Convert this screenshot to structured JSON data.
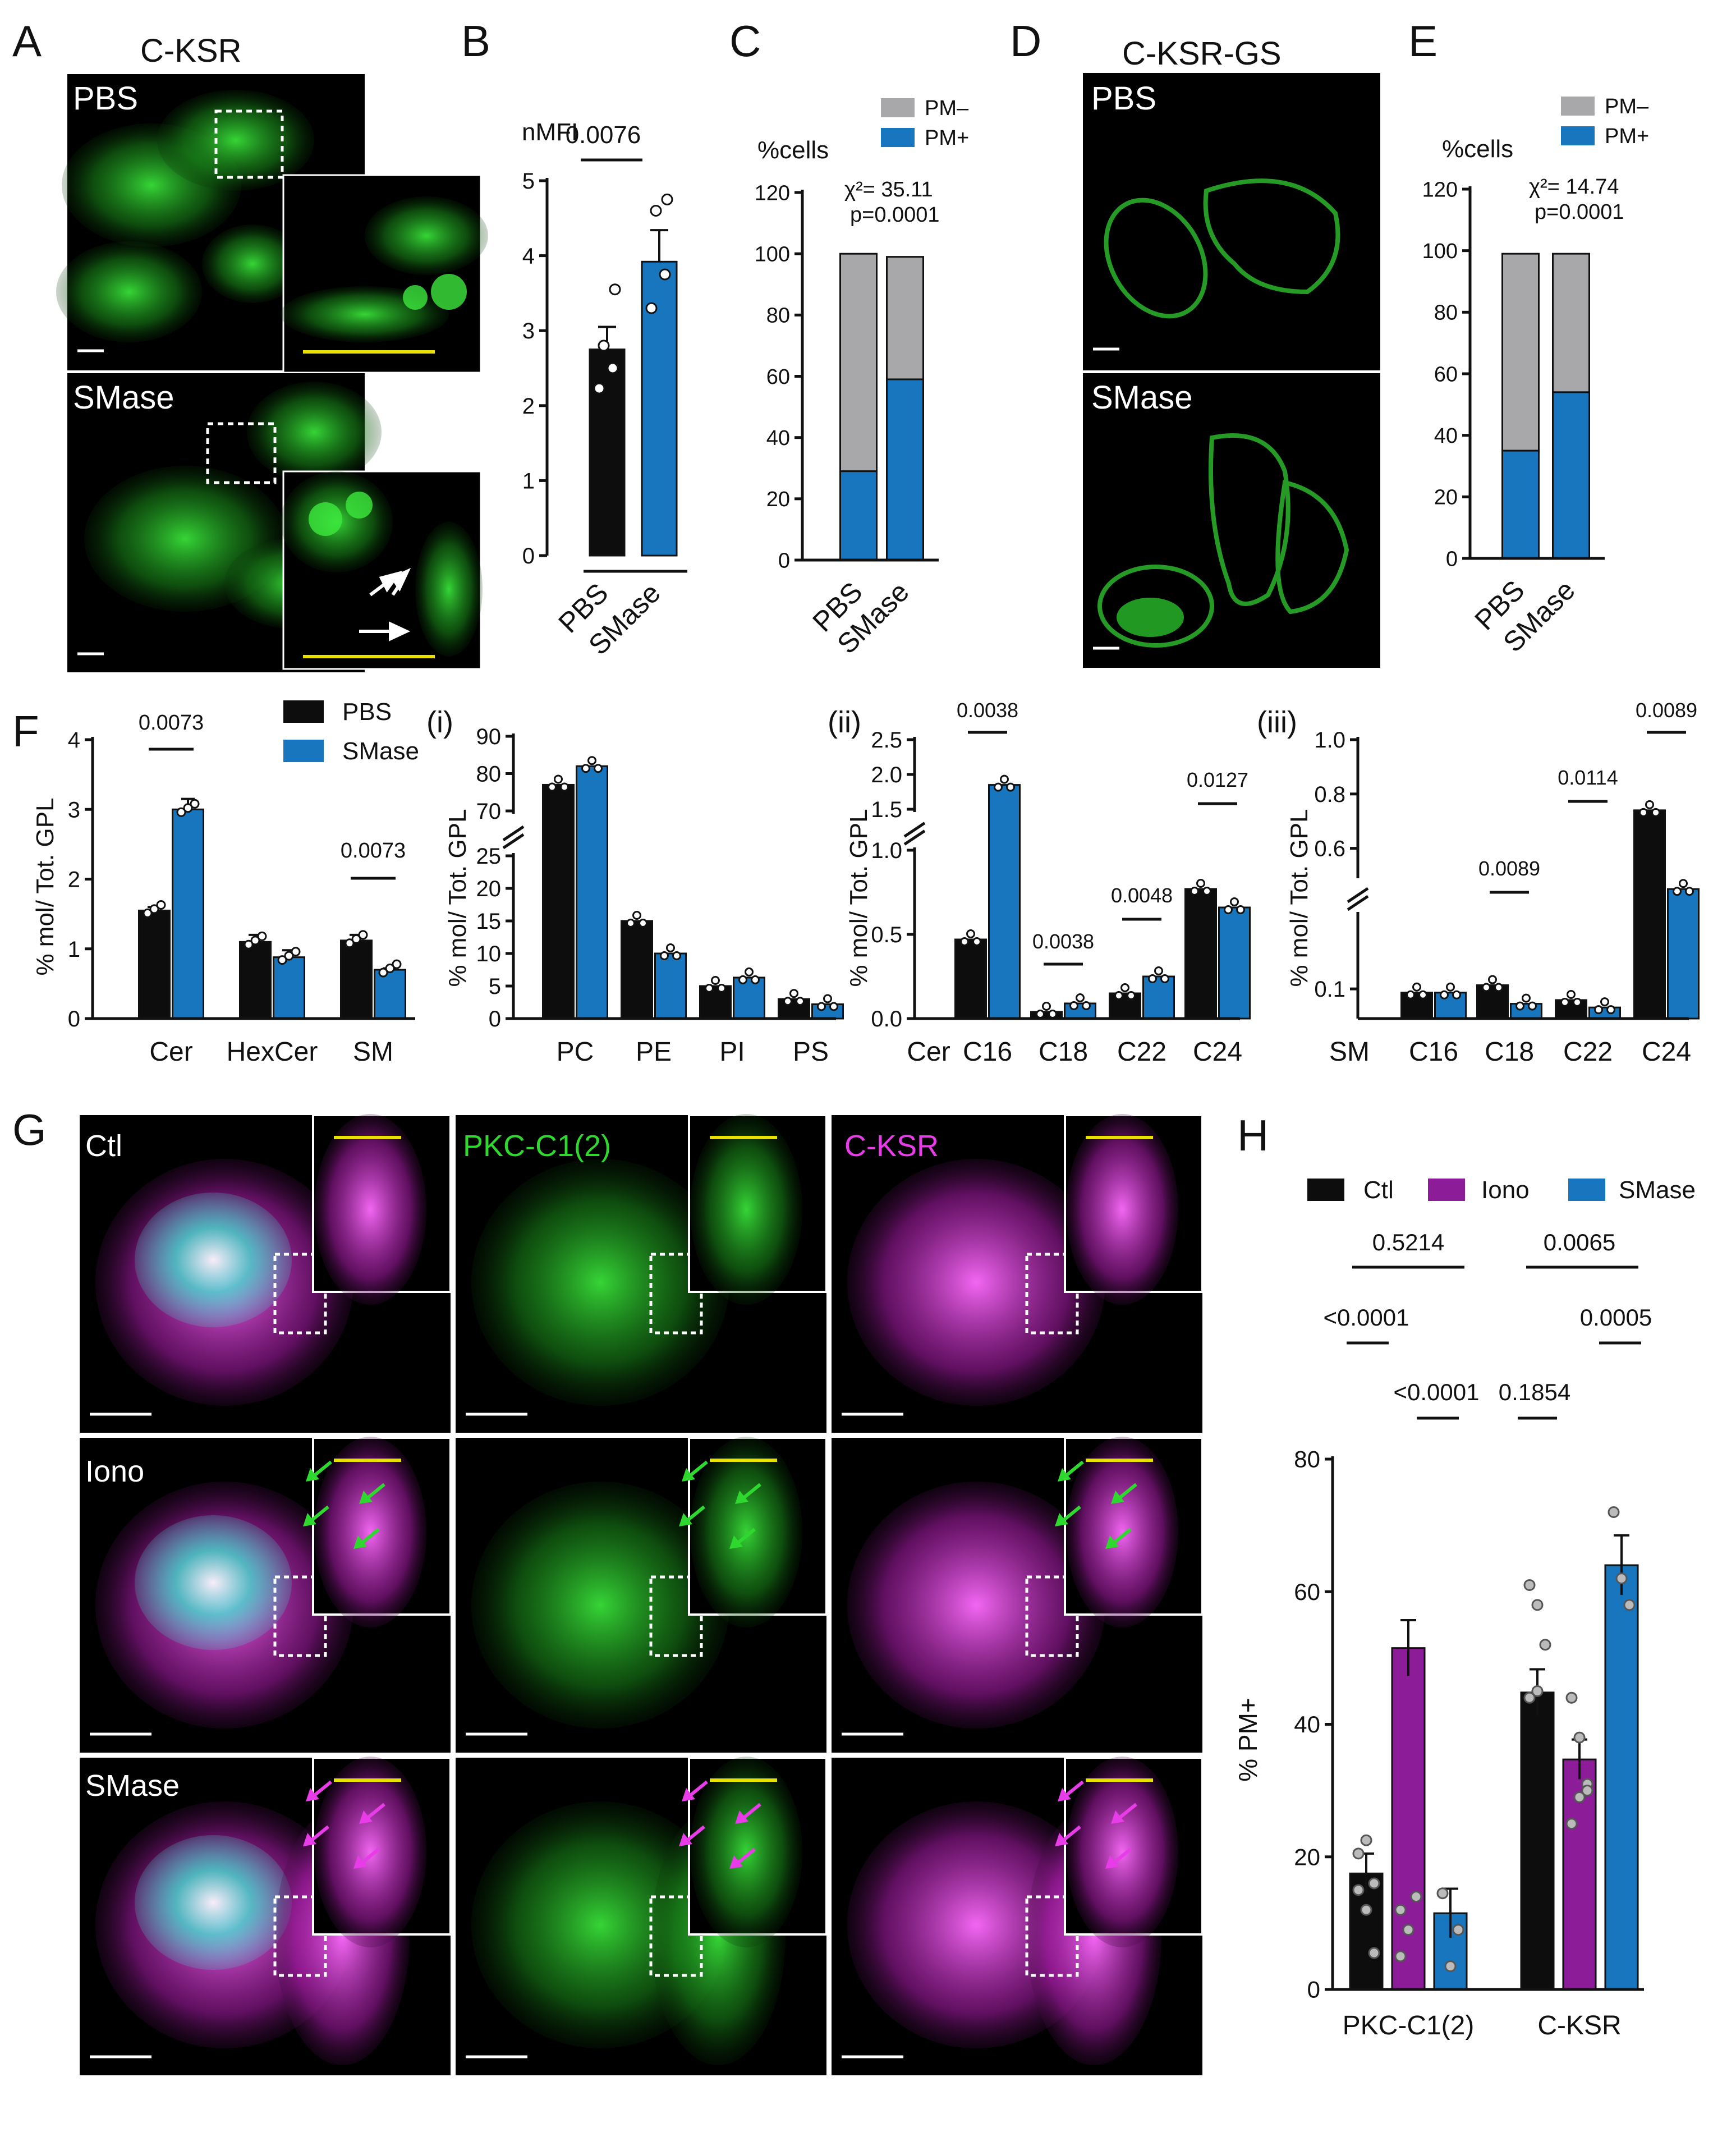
{
  "panels": {
    "A": {
      "letter": "A",
      "title": "C-KSR",
      "top_label": "PBS",
      "bottom_label": "SMase"
    },
    "B": {
      "letter": "B",
      "ylabel": "nMFI",
      "pvalue": "0.0076",
      "yticks": [
        "0",
        "1",
        "2",
        "3",
        "4",
        "5"
      ],
      "categories": [
        "PBS",
        "SMase"
      ]
    },
    "C": {
      "letter": "C",
      "ylabel": "%cells",
      "stat_line1": "χ²= 35.11",
      "stat_line2": "p=0.0001",
      "yticks": [
        "0",
        "20",
        "40",
        "60",
        "80",
        "100",
        "120"
      ],
      "categories": [
        "PBS",
        "SMase"
      ],
      "legend": [
        "PM–",
        "PM+"
      ]
    },
    "D": {
      "letter": "D",
      "title": "C-KSR-GS",
      "top_label": "PBS",
      "bottom_label": "SMase"
    },
    "E": {
      "letter": "E",
      "ylabel": "%cells",
      "stat_line1": "χ²= 14.74",
      "stat_line2": "p=0.0001",
      "yticks": [
        "0",
        "20",
        "40",
        "60",
        "80",
        "100",
        "120"
      ],
      "categories": [
        "PBS",
        "SMase"
      ],
      "legend": [
        "PM–",
        "PM+"
      ]
    },
    "F": {
      "letter": "F",
      "ylabel": "% mol/ Tot. GPL",
      "legend": [
        "PBS",
        "SMase"
      ],
      "yticks": [
        "0",
        "1",
        "2",
        "3",
        "4"
      ],
      "categories": [
        "Cer",
        "HexCer",
        "SM"
      ],
      "pvalues": [
        "0.0073",
        "0.0073"
      ]
    },
    "Fi": {
      "letter": "(i)",
      "ylabel": "% mol/ Tot. GPL",
      "yticks_low": [
        "0",
        "5",
        "10",
        "15",
        "20",
        "25"
      ],
      "yticks_high": [
        "70",
        "80",
        "90"
      ],
      "categories": [
        "PC",
        "PE",
        "PI",
        "PS"
      ]
    },
    "Fii": {
      "letter": "(ii)",
      "ylabel": "% mol/ Tot. GPL",
      "yticks_low": [
        "0.0",
        "0.5",
        "1.0"
      ],
      "yticks_high": [
        "1.5",
        "2.0",
        "2.5"
      ],
      "group": "Cer",
      "categories": [
        "C16",
        "C18",
        "C22",
        "C24"
      ],
      "pvalues": [
        "0.0038",
        "0.0038",
        "0.0048",
        "0.0127"
      ]
    },
    "Fiii": {
      "letter": "(iii)",
      "ylabel": "% mol/ Tot. GPL",
      "yticks_low": [
        "0.1"
      ],
      "yticks_high": [
        "0.6",
        "0.8",
        "1.0"
      ],
      "group": "SM",
      "categories": [
        "C16",
        "C18",
        "C22",
        "C24"
      ],
      "pvalues": [
        "0.0089",
        "0.0114",
        "0.0089"
      ]
    },
    "G": {
      "letter": "G",
      "col_labels": [
        "PKC-C1(2)",
        "C-KSR"
      ],
      "row_labels": [
        "Ctl",
        "Iono",
        "SMase"
      ]
    },
    "H": {
      "letter": "H",
      "ylabel": "% PM+",
      "legend": [
        "Ctl",
        "Iono",
        "SMase"
      ],
      "yticks": [
        "0",
        "20",
        "40",
        "60",
        "80"
      ],
      "categories": [
        "PKC-C1(2)",
        "C-KSR"
      ],
      "pvalues": [
        "0.5214",
        "0.0065",
        "<0.0001",
        "0.0005",
        "<0.0001",
        "0.1854"
      ]
    }
  },
  "colors": {
    "black": "#0d0d0d",
    "blue": "#1776bd",
    "grey": "#a8a8ab",
    "purple": "#8c1c98",
    "green": "#2fd82f",
    "magenta": "#e83ce8",
    "cyan": "#3fd6c8",
    "yellow": "#e8e000"
  },
  "chart_data": [
    {
      "panel": "B",
      "type": "bar",
      "categories": [
        "PBS",
        "SMase"
      ],
      "values": [
        2.75,
        3.92
      ],
      "errors": [
        0.3,
        0.42
      ],
      "points": [
        [
          2.23,
          2.5,
          2.8,
          3.55
        ],
        [
          3.3,
          3.75,
          4.6,
          4.75
        ]
      ],
      "ylim": [
        0,
        5
      ],
      "ylabel": "nMFI"
    },
    {
      "panel": "C",
      "type": "bar",
      "stacked": true,
      "categories": [
        "PBS",
        "SMase"
      ],
      "series": [
        {
          "name": "PM+",
          "values": [
            29,
            59
          ]
        },
        {
          "name": "PM–",
          "values": [
            71,
            40
          ]
        }
      ],
      "ylim": [
        0,
        120
      ],
      "ylabel": "%cells"
    },
    {
      "panel": "E",
      "type": "bar",
      "stacked": true,
      "categories": [
        "PBS",
        "SMase"
      ],
      "series": [
        {
          "name": "PM+",
          "values": [
            35,
            54
          ]
        },
        {
          "name": "PM–",
          "values": [
            64,
            45
          ]
        }
      ],
      "ylim": [
        0,
        120
      ],
      "ylabel": "%cells"
    },
    {
      "panel": "F",
      "type": "bar",
      "categories": [
        "Cer",
        "HexCer",
        "SM"
      ],
      "series": [
        {
          "name": "PBS",
          "values": [
            1.55,
            1.1,
            1.12
          ],
          "errors": [
            0.05,
            0.1,
            0.08
          ]
        },
        {
          "name": "SMase",
          "values": [
            3.0,
            0.88,
            0.7
          ],
          "errors": [
            0.15,
            0.1,
            0.02
          ]
        }
      ],
      "ylim": [
        0,
        4
      ],
      "ylabel": "% mol/ Tot. GPL"
    },
    {
      "panel": "Fi",
      "type": "bar",
      "categories": [
        "PC",
        "PE",
        "PI",
        "PS"
      ],
      "series": [
        {
          "name": "PBS",
          "values": [
            77,
            15,
            5,
            3
          ]
        },
        {
          "name": "SMase",
          "values": [
            82,
            10,
            6.3,
            2.2
          ]
        }
      ],
      "ylabel": "% mol/ Tot. GPL"
    },
    {
      "panel": "Fii",
      "type": "bar",
      "categories": [
        "C16",
        "C18",
        "C22",
        "C24"
      ],
      "series": [
        {
          "name": "PBS",
          "values": [
            0.47,
            0.04,
            0.15,
            0.77
          ]
        },
        {
          "name": "SMase",
          "values": [
            1.85,
            0.09,
            0.25,
            0.66
          ]
        }
      ],
      "ylabel": "% mol/ Tot. GPL"
    },
    {
      "panel": "Fiii",
      "type": "bar",
      "categories": [
        "C16",
        "C18",
        "C22",
        "C24"
      ],
      "series": [
        {
          "name": "PBS",
          "values": [
            0.09,
            0.11,
            0.07,
            0.74
          ]
        },
        {
          "name": "SMase",
          "values": [
            0.09,
            0.06,
            0.05,
            0.45
          ]
        }
      ],
      "ylabel": "% mol/ Tot. GPL"
    },
    {
      "panel": "H",
      "type": "bar",
      "categories": [
        "PKC-C1(2)",
        "C-KSR"
      ],
      "series": [
        {
          "name": "Ctl",
          "values": [
            17.5,
            44.8
          ],
          "errors": [
            3,
            3.5
          ]
        },
        {
          "name": "Iono",
          "values": [
            51.5,
            34.7
          ],
          "errors": [
            4.2,
            3
          ]
        },
        {
          "name": "SMase",
          "values": [
            11.5,
            64
          ],
          "errors": [
            3.7,
            4.5
          ]
        }
      ],
      "ylim": [
        0,
        80
      ],
      "ylabel": "% PM+"
    }
  ]
}
